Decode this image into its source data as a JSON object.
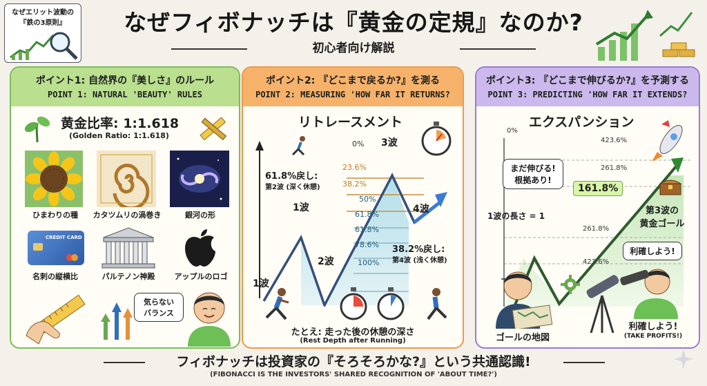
{
  "header": {
    "title": "なぜフィボナッチは『黄金の定規』なのか?",
    "subtitle": "初心者向け解説",
    "badge_line1": "なぜエリット波動の",
    "badge_line2": "『鉄の3原則』"
  },
  "panel1": {
    "head_jp": "ポイント1: 自然界の『美しさ』のルール",
    "head_en": "POINT 1: NATURAL 'BEAUTY' RULES",
    "ratio": "黄金比率: 1:1.618",
    "ratio_en": "(Golden Ratio: 1:1.618)",
    "cap_sunflower": "ひまわりの種",
    "cap_snail": "カタツムリの渦巻き",
    "cap_galaxy": "銀河の形",
    "card_text": "CREDIT CARD",
    "cap_card": "名刺の縦横比",
    "cap_parthenon": "パルテノン神殿",
    "cap_apple": "アップルのロゴ",
    "bubble_line1": "気らない",
    "bubble_line2": "バランス"
  },
  "panel2": {
    "head_jp": "ポイント2: 『どこまで戻るか?』を測る",
    "head_en": "POINT 2: MEASURING 'HOW FAR IT RETURNS?",
    "heading": "リトレースメント",
    "levels": [
      "0%",
      "23.6%",
      "38.2%",
      "50%",
      "61.8%",
      "61.8%",
      "78.6%",
      "100%"
    ],
    "wave1": "1波",
    "wave1_bottom": "1波",
    "wave2": "2波",
    "wave3": "3波",
    "wave4": "4波",
    "note_a1": "61.8%戻し:",
    "note_a2": "第2波 (深く休憩)",
    "note_b1": "38.2%戻し:",
    "note_b2": "第4波 (浅く休憩)",
    "example": "たとえ: 走った後の休憩の深さ",
    "example_en": "(Rest Depth after Running)"
  },
  "panel3": {
    "head_jp": "ポイント3: 『どこまで伸びるか?』を予測する",
    "head_en": "POINT 3: PREDICTING 'HOW FAR IT EXTENDS?",
    "heading": "エクスパンション",
    "levels_top": [
      "0%",
      "423.6%",
      "261.8%"
    ],
    "highlight": "161.8%",
    "levels_mid": [
      "261.8%",
      "423.6%"
    ],
    "bubble_line1": "まだ伸びる!",
    "bubble_line2": "根拠あり!",
    "wave_length": "1波の長さ = 1",
    "goal_line1": "第3波の",
    "goal_line2": "黄金ゴール",
    "bubble_take": "利確しよう!",
    "cap_map": "ゴールの地図",
    "cap_take": "利確しよう!",
    "cap_take_en": "(TAKE PROFITS!)"
  },
  "footer": {
    "main": "フィボナッチは投資家の『そろそろかな?』という共通認識!",
    "sub": "(FIBONACCI IS THE INVESTORS' SHARED RECOGNITION OF 'ABOUT TIME?')"
  },
  "colors": {
    "green_panel": "#b9df8f",
    "orange_panel": "#f6b26b",
    "purple_panel": "#cbb8ec",
    "wave_line": "#34507a",
    "gold": "#d9a93a"
  }
}
